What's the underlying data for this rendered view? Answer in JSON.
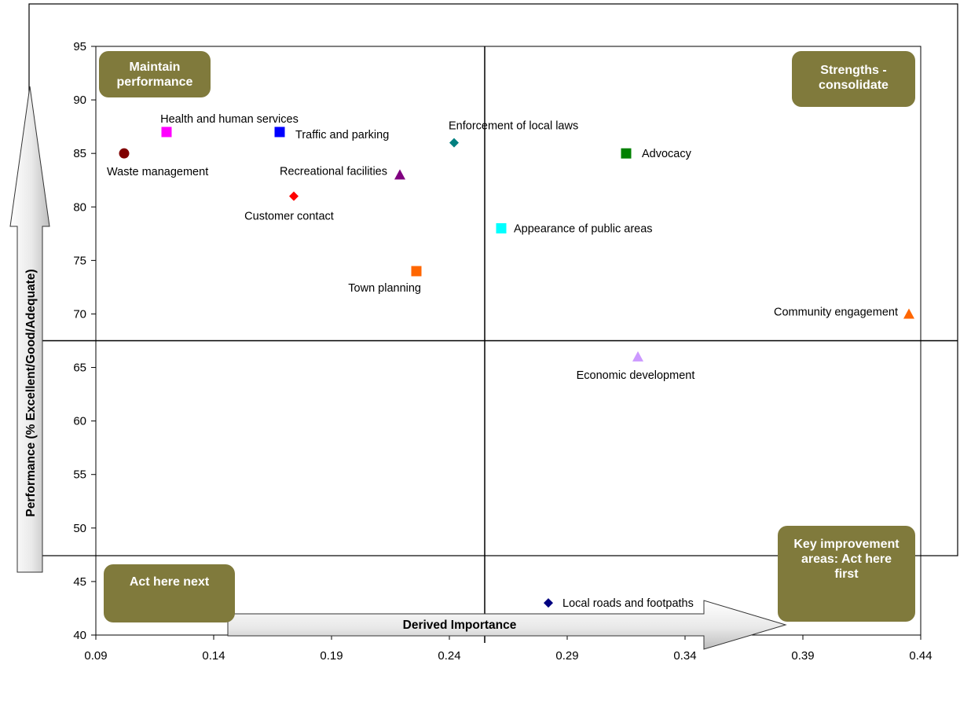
{
  "chart_data": {
    "type": "scatter",
    "xlabel": "Derived Importance",
    "ylabel": "Performance (% Excellent/Good/Adequate)",
    "xlim": [
      0.09,
      0.44
    ],
    "ylim": [
      40,
      95
    ],
    "x_ticks": [
      "0.09",
      "0.14",
      "0.19",
      "0.24",
      "0.29",
      "0.34",
      "0.39",
      "0.44"
    ],
    "y_ticks": [
      "95",
      "90",
      "85",
      "80",
      "75",
      "70",
      "65",
      "60",
      "55",
      "50",
      "45",
      "40"
    ],
    "grid": false,
    "quadrant_dividers": {
      "x": 0.255,
      "y": 67.5
    },
    "quadrant_labels": {
      "top_left": "Maintain performance",
      "top_right": "Strengths - consolidate",
      "bottom_left": "Act here next",
      "bottom_right": "Key improvement areas: Act here first"
    },
    "points": [
      {
        "label": "Waste management",
        "x": 0.102,
        "y": 85,
        "shape": "circle",
        "color": "#800000"
      },
      {
        "label": "Health and human services",
        "x": 0.12,
        "y": 87,
        "shape": "square",
        "color": "#ff00ff"
      },
      {
        "label": "Traffic and parking",
        "x": 0.168,
        "y": 87,
        "shape": "square",
        "color": "#0000ff"
      },
      {
        "label": "Customer contact",
        "x": 0.174,
        "y": 81,
        "shape": "diamond",
        "color": "#ff0000"
      },
      {
        "label": "Recreational facilities",
        "x": 0.219,
        "y": 83,
        "shape": "triangle",
        "color": "#800080"
      },
      {
        "label": "Town planning",
        "x": 0.226,
        "y": 74,
        "shape": "square",
        "color": "#ff6600"
      },
      {
        "label": "Enforcement of local laws",
        "x": 0.242,
        "y": 86,
        "shape": "diamond",
        "color": "#008080"
      },
      {
        "label": "Appearance of public areas",
        "x": 0.262,
        "y": 78,
        "shape": "square",
        "color": "#00ffff"
      },
      {
        "label": "Local roads and footpaths",
        "x": 0.282,
        "y": 43,
        "shape": "diamond",
        "color": "#000080"
      },
      {
        "label": "Advocacy",
        "x": 0.315,
        "y": 85,
        "shape": "square",
        "color": "#008000"
      },
      {
        "label": "Economic development",
        "x": 0.32,
        "y": 66,
        "shape": "triangle",
        "color": "#cc99ff"
      },
      {
        "label": "Community engagement",
        "x": 0.435,
        "y": 70,
        "shape": "triangle",
        "color": "#ff6600"
      }
    ]
  }
}
